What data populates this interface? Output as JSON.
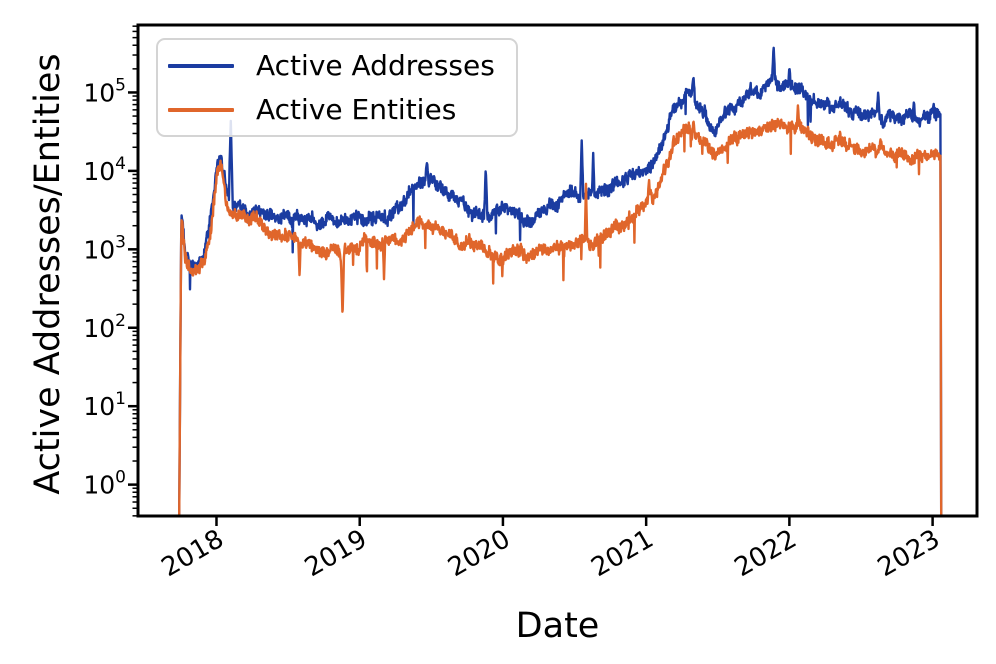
{
  "figure": {
    "ylabel": "Active Addresses/Entities",
    "xlabel": "Date",
    "background_color": "#ffffff",
    "axis_color": "#000000",
    "legend_border_color": "#d4d4d4"
  },
  "legend": {
    "items": [
      {
        "label": "Active Addresses",
        "color": "#1b3ca1"
      },
      {
        "label": "Active Entities",
        "color": "#e0662b"
      }
    ]
  },
  "chart_data": {
    "type": "line",
    "title": "",
    "xlabel": "Date",
    "ylabel": "Active Addresses/Entities",
    "y_scale": "log",
    "grid": false,
    "legend_position": "upper left",
    "x_ticks": [
      2018,
      2019,
      2020,
      2021,
      2022,
      2023
    ],
    "x_tick_rotation_deg": 30,
    "y_tick_exponents": [
      0,
      1,
      2,
      3,
      4,
      5
    ],
    "xlim": [
      2017.452,
      2023.31
    ],
    "ylim_log10": [
      -0.4,
      5.86
    ],
    "series": [
      {
        "name": "Active Addresses",
        "color": "#1b3ca1",
        "anchors": [
          [
            2017.74,
            0.4
          ],
          [
            2017.755,
            3200
          ],
          [
            2017.78,
            1000
          ],
          [
            2017.82,
            650
          ],
          [
            2017.87,
            680
          ],
          [
            2017.92,
            900
          ],
          [
            2017.96,
            2500
          ],
          [
            2018.0,
            9500
          ],
          [
            2018.035,
            13000
          ],
          [
            2018.07,
            5500
          ],
          [
            2018.12,
            4200
          ],
          [
            2018.2,
            3600
          ],
          [
            2018.3,
            3300
          ],
          [
            2018.4,
            2900
          ],
          [
            2018.5,
            2700
          ],
          [
            2018.6,
            2400
          ],
          [
            2018.7,
            2300
          ],
          [
            2018.8,
            2100
          ],
          [
            2018.9,
            2200
          ],
          [
            2019.0,
            2400
          ],
          [
            2019.1,
            2300
          ],
          [
            2019.2,
            2500
          ],
          [
            2019.3,
            3500
          ],
          [
            2019.4,
            7000
          ],
          [
            2019.5,
            7500
          ],
          [
            2019.6,
            5000
          ],
          [
            2019.7,
            3600
          ],
          [
            2019.8,
            3100
          ],
          [
            2019.9,
            3000
          ],
          [
            2020.0,
            3200
          ],
          [
            2020.1,
            3000
          ],
          [
            2020.18,
            2300
          ],
          [
            2020.25,
            3000
          ],
          [
            2020.35,
            3800
          ],
          [
            2020.45,
            4500
          ],
          [
            2020.55,
            5200
          ],
          [
            2020.65,
            5400
          ],
          [
            2020.75,
            5800
          ],
          [
            2020.85,
            7000
          ],
          [
            2020.95,
            9000
          ],
          [
            2021.05,
            13000
          ],
          [
            2021.12,
            25000
          ],
          [
            2021.2,
            65000
          ],
          [
            2021.3,
            100000
          ],
          [
            2021.38,
            70000
          ],
          [
            2021.48,
            33000
          ],
          [
            2021.58,
            65000
          ],
          [
            2021.68,
            85000
          ],
          [
            2021.78,
            100000
          ],
          [
            2021.88,
            120000
          ],
          [
            2021.96,
            115000
          ],
          [
            2022.05,
            105000
          ],
          [
            2022.15,
            88000
          ],
          [
            2022.25,
            78000
          ],
          [
            2022.35,
            68000
          ],
          [
            2022.45,
            60000
          ],
          [
            2022.55,
            52000
          ],
          [
            2022.65,
            48000
          ],
          [
            2022.75,
            46000
          ],
          [
            2022.85,
            45000
          ],
          [
            2022.95,
            48000
          ],
          [
            2023.02,
            50000
          ],
          [
            2023.055,
            45000
          ],
          [
            2023.06,
            0.4
          ]
        ],
        "spikes": [
          [
            2018.1,
            45000,
            5
          ],
          [
            2019.47,
            13000,
            4
          ],
          [
            2019.88,
            11000,
            4
          ],
          [
            2020.55,
            26000,
            4
          ],
          [
            2020.63,
            17000,
            3
          ],
          [
            2021.33,
            160000,
            4
          ],
          [
            2021.89,
            400000,
            4
          ],
          [
            2022.0,
            210000,
            4
          ],
          [
            2022.62,
            105000,
            3
          ],
          [
            2022.87,
            78000,
            3
          ]
        ]
      },
      {
        "name": "Active Entities",
        "color": "#e0662b",
        "anchors": [
          [
            2017.74,
            0.4
          ],
          [
            2017.755,
            2800
          ],
          [
            2017.78,
            800
          ],
          [
            2017.82,
            520
          ],
          [
            2017.87,
            560
          ],
          [
            2017.92,
            750
          ],
          [
            2017.96,
            2000
          ],
          [
            2018.0,
            8500
          ],
          [
            2018.035,
            11000
          ],
          [
            2018.07,
            3400
          ],
          [
            2018.12,
            2900
          ],
          [
            2018.2,
            2600
          ],
          [
            2018.3,
            2100
          ],
          [
            2018.4,
            1600
          ],
          [
            2018.5,
            1400
          ],
          [
            2018.6,
            1200
          ],
          [
            2018.7,
            1050
          ],
          [
            2018.8,
            950
          ],
          [
            2018.9,
            1000
          ],
          [
            2019.0,
            1050
          ],
          [
            2019.1,
            1000
          ],
          [
            2019.2,
            1150
          ],
          [
            2019.3,
            1500
          ],
          [
            2019.4,
            2100
          ],
          [
            2019.5,
            2100
          ],
          [
            2019.6,
            1600
          ],
          [
            2019.7,
            1300
          ],
          [
            2019.8,
            1100
          ],
          [
            2019.9,
            950
          ],
          [
            2020.0,
            900
          ],
          [
            2020.1,
            880
          ],
          [
            2020.18,
            800
          ],
          [
            2020.25,
            950
          ],
          [
            2020.35,
            1100
          ],
          [
            2020.45,
            1300
          ],
          [
            2020.55,
            1400
          ],
          [
            2020.65,
            1500
          ],
          [
            2020.75,
            1650
          ],
          [
            2020.85,
            2000
          ],
          [
            2020.95,
            2800
          ],
          [
            2021.05,
            4500
          ],
          [
            2021.12,
            9000
          ],
          [
            2021.2,
            22000
          ],
          [
            2021.3,
            33000
          ],
          [
            2021.38,
            25000
          ],
          [
            2021.48,
            13000
          ],
          [
            2021.58,
            22000
          ],
          [
            2021.68,
            27000
          ],
          [
            2021.78,
            30000
          ],
          [
            2021.88,
            33000
          ],
          [
            2021.96,
            36000
          ],
          [
            2022.05,
            38000
          ],
          [
            2022.15,
            31000
          ],
          [
            2022.25,
            28000
          ],
          [
            2022.35,
            24000
          ],
          [
            2022.45,
            21000
          ],
          [
            2022.55,
            18500
          ],
          [
            2022.65,
            17000
          ],
          [
            2022.75,
            16000
          ],
          [
            2022.85,
            15000
          ],
          [
            2022.95,
            15500
          ],
          [
            2023.02,
            16500
          ],
          [
            2023.055,
            14000
          ],
          [
            2023.06,
            0.4
          ]
        ],
        "spikes": [
          [
            2018.58,
            450,
            3
          ],
          [
            2018.88,
            130,
            4
          ],
          [
            2019.17,
            400,
            3
          ],
          [
            2020.58,
            7000,
            3
          ],
          [
            2021.02,
            8000,
            3
          ],
          [
            2021.33,
            45000,
            4
          ],
          [
            2022.06,
            70000,
            3
          ]
        ]
      }
    ]
  }
}
